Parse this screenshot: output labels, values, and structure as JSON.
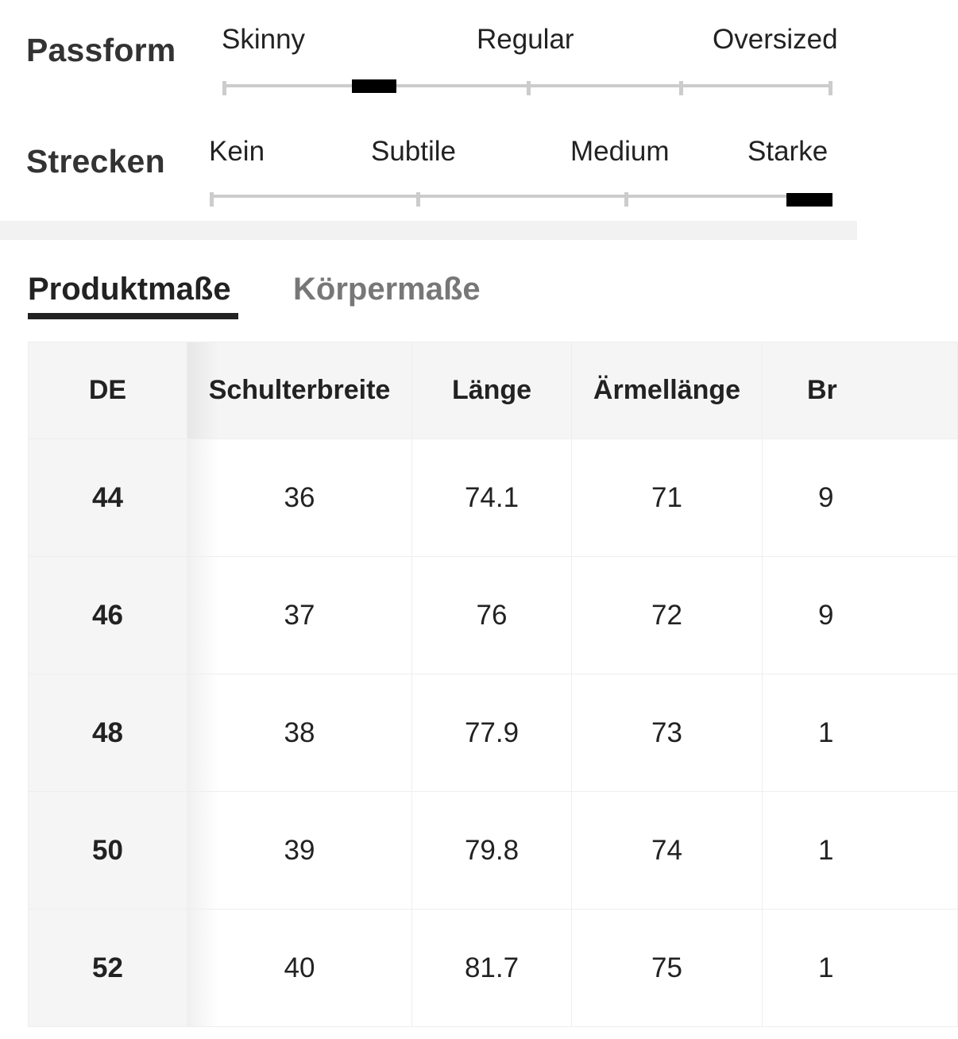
{
  "fit_scale": {
    "label": "Passform",
    "options": [
      "Skinny",
      "Regular",
      "Oversized"
    ],
    "value_fraction": 0.247
  },
  "stretch_scale": {
    "label": "Strecken",
    "options": [
      "Kein",
      "Subtile",
      "Medium",
      "Starke"
    ],
    "value_fraction": 0.97
  },
  "tabs": [
    {
      "label": "Produktmaße",
      "active": true
    },
    {
      "label": "Körpermaße",
      "active": false
    }
  ],
  "table": {
    "headers": [
      "DE",
      "Schulterbreite",
      "Länge",
      "Ärmellänge",
      "Br"
    ],
    "rows": [
      [
        "44",
        "36",
        "74.1",
        "71",
        "9"
      ],
      [
        "46",
        "37",
        "76",
        "72",
        "9"
      ],
      [
        "48",
        "38",
        "77.9",
        "73",
        "1"
      ],
      [
        "50",
        "39",
        "79.8",
        "74",
        "1"
      ],
      [
        "52",
        "40",
        "81.7",
        "75",
        "1"
      ]
    ]
  },
  "colors": {
    "marker": "#000000",
    "track": "#cccccc",
    "header_bg": "#f5f5f5",
    "inactive_tab": "#777777"
  }
}
